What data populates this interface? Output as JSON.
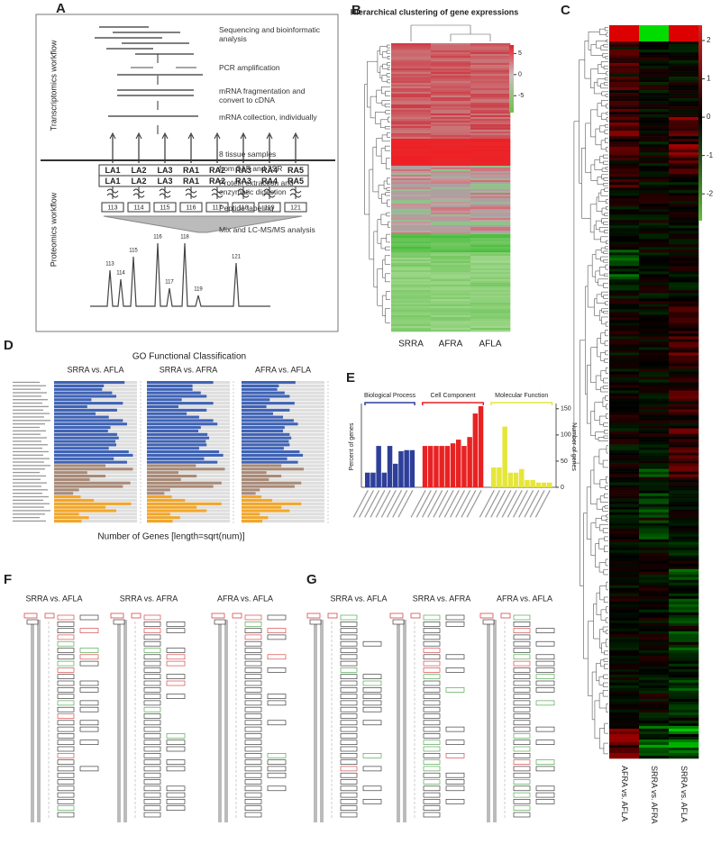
{
  "panel_a": {
    "letter": "A",
    "side_labels": [
      "Transcriptomics workflow",
      "Proteomics workflow"
    ],
    "steps": [
      "Sequencing and bioinformatic analysis",
      "PCR amplification",
      "mRNA fragmentation and convert to cDNA",
      "mRNA collection, individually",
      "8 tissue samples",
      "from 3AF and 2SR",
      "Protein extraction and enzymatic digestion",
      "Peptide labeling",
      "Mix and LC-MS/MS analysis"
    ],
    "samples": [
      "LA1",
      "LA2",
      "LA3",
      "RA1",
      "RA2",
      "RA3",
      "RA4",
      "RA5"
    ],
    "tags": [
      "113",
      "114",
      "115",
      "116",
      "117",
      "118",
      "119",
      "121"
    ]
  },
  "panel_b": {
    "letter": "B",
    "title": "Hierarchical clustering of gene expressions",
    "columns": [
      "SRRA",
      "AFRA",
      "AFLA"
    ],
    "colorbar_ticks": [
      5,
      0,
      -5
    ],
    "colorbar_lim": [
      -9,
      7
    ]
  },
  "panel_c": {
    "letter": "C",
    "columns": [
      "AFRA vs. AFLA",
      "SRRA vs. AFRA",
      "SRRA vs. AFLA"
    ],
    "colorbar_ticks": [
      2,
      1,
      0,
      -1,
      -2
    ],
    "colorbar_lim": [
      -2.7,
      2.4
    ]
  },
  "panel_d": {
    "letter": "D",
    "title": "GO Functional Classification",
    "x_label": "Number of Genes [length=sqrt(num)]"
  },
  "panel_e": {
    "letter": "E"
  },
  "panel_f": {
    "letter": "F",
    "titles": [
      "SRRA vs. AFLA",
      "SRRA vs. AFRA",
      "AFRA vs. AFLA"
    ]
  },
  "panel_g": {
    "letter": "G",
    "titles": [
      "SRRA vs. AFLA",
      "SRRA vs. AFRA",
      "AFRA vs. AFLA"
    ]
  },
  "chart_data": [
    {
      "type": "hbar",
      "title": "SRRA vs. AFLA",
      "xlim": [
        0,
        10
      ],
      "groups": [
        {
          "color": "#3f63b5",
          "values": [
            8.5,
            6,
            5.8,
            7,
            7.5,
            4.5,
            8.3,
            4,
            7.6,
            5,
            6.6,
            8.3,
            8.8,
            6.8,
            6.5,
            7.6,
            7.8,
            7.4,
            7.5,
            6.6,
            9,
            9.5,
            7.2,
            8.8
          ]
        },
        {
          "color": "#a88a78",
          "values": [
            6.2,
            9.5,
            4,
            6.2,
            4.3,
            9.2,
            8.3,
            3,
            2.3
          ]
        },
        {
          "color": "#f2a62a",
          "values": [
            3.2,
            4.8,
            9.3,
            6.2,
            7.5,
            3,
            4.2,
            3.3
          ]
        }
      ]
    },
    {
      "type": "hbar",
      "title": "SRRA vs. AFRA",
      "xlim": [
        0,
        10
      ],
      "groups": [
        {
          "color": "#3f63b5",
          "values": [
            8,
            5.5,
            5.5,
            6.5,
            7.2,
            4.2,
            8,
            3.8,
            7.2,
            4.8,
            6.3,
            8,
            8.5,
            6.5,
            6.2,
            7.3,
            7.5,
            7.1,
            7.2,
            6.3,
            8.7,
            9.2,
            6.9,
            8.5
          ]
        },
        {
          "color": "#a88a78",
          "values": [
            5.9,
            9.4,
            3.8,
            6,
            4.1,
            9,
            8,
            2.8,
            2.1
          ]
        },
        {
          "color": "#f2a62a",
          "values": [
            3,
            4.6,
            9,
            6,
            7.2,
            2.8,
            4,
            3.1
          ]
        }
      ]
    },
    {
      "type": "hbar",
      "title": "AFRA vs. AFLA",
      "xlim": [
        0,
        10
      ],
      "groups": [
        {
          "color": "#3f63b5",
          "values": [
            6.5,
            4.5,
            4.3,
            5.2,
            5.8,
            3.4,
            6.4,
            3,
            5.8,
            3.8,
            5,
            6.3,
            6.8,
            5.2,
            5,
            5.8,
            6,
            5.7,
            5.8,
            5.1,
            7,
            7.4,
            5.5,
            6.8
          ]
        },
        {
          "color": "#a88a78",
          "values": [
            4.8,
            7.5,
            3,
            4.8,
            3.3,
            7.2,
            6.4,
            2.2,
            1.7
          ]
        },
        {
          "color": "#f2a62a",
          "values": [
            2.4,
            3.7,
            7.2,
            4.8,
            5.8,
            2.2,
            3.2,
            2.5
          ]
        }
      ]
    },
    {
      "type": "bar",
      "y_label": "Percent of genes",
      "y2_label": "Number of genes",
      "y2lim": [
        0,
        160
      ],
      "y2ticks": [
        0,
        50,
        100,
        150
      ],
      "groups": [
        {
          "name": "Biological Process",
          "color": "#2e3f9a",
          "values": [
            28,
            28,
            79,
            28,
            79,
            45,
            69,
            71,
            71
          ]
        },
        {
          "name": "Cell Component",
          "color": "#e82222",
          "values": [
            79,
            79,
            79,
            79,
            79,
            84,
            91,
            79,
            96,
            141,
            155
          ]
        },
        {
          "name": "Molecular Function",
          "color": "#e6e63a",
          "values": [
            38,
            38,
            116,
            28,
            28,
            35,
            14,
            14,
            9,
            9,
            9
          ]
        }
      ]
    }
  ]
}
